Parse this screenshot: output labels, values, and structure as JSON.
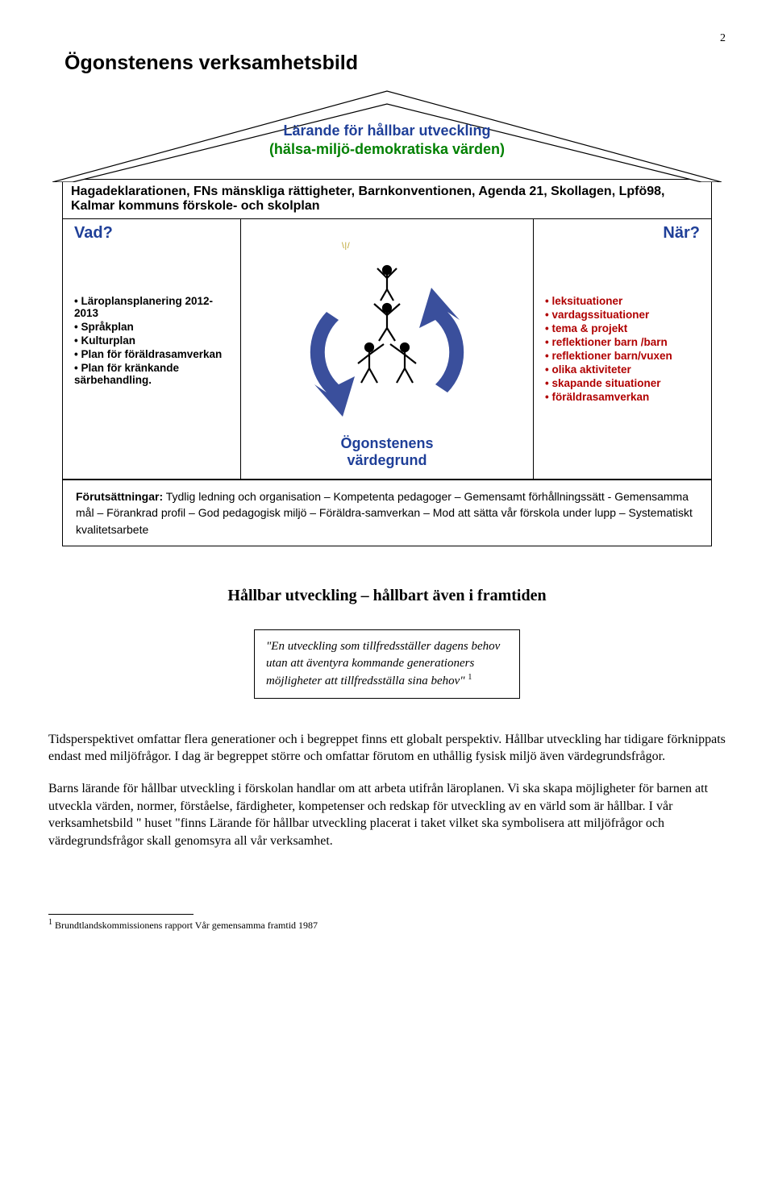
{
  "page_number": "2",
  "main_title": "Ögonstenens verksamhetsbild",
  "roof": {
    "line1": "Lärande för hållbar utveckling",
    "line2": "(hälsa-miljö-demokratiska värden)",
    "line1_color": "#1f3f98",
    "line2_color": "#008000"
  },
  "attic_text": "Hagadeklarationen, FNs mänskliga rättigheter, Barnkonventionen, Agenda 21, Skollagen, Lpfö98, Kalmar kommuns förskole- och skolplan",
  "left_pillar": {
    "header": "Vad?",
    "header_color": "#1f3f98",
    "items": [
      "Läroplansplanering 2012-2013",
      "Språkplan",
      "Kulturplan",
      "Plan för föräldrasamverkan",
      "Plan för kränkande särbehandling."
    ]
  },
  "mid_pillar": {
    "label": "Ögonstenens värdegrund",
    "label_color": "#1f3f98",
    "arrow_color": "#3a4f9c",
    "figure_color": "#000000"
  },
  "right_pillar": {
    "header": "När?",
    "header_color": "#1f3f98",
    "items_color": "#b00000",
    "items": [
      "leksituationer",
      "vardagssituationer",
      "tema & projekt",
      "reflektioner barn /barn",
      "reflektioner barn/vuxen",
      "olika aktiviteter",
      "skapande situationer",
      "föräldrasamverkan"
    ]
  },
  "foundation": {
    "lead": "Förutsättningar:",
    "text": " Tydlig ledning och organisation – Kompetenta pedagoger – Gemensamt förhållningssätt - Gemensamma mål –  Förankrad profil – God pedagogisk miljö – Föräldra-samverkan –  Mod att sätta vår förskola under lupp – Systematiskt kvalitetsarbete"
  },
  "section_heading": "Hållbar utveckling – hållbart även i framtiden",
  "quote": {
    "text_prefix": "\"En utveckling som ",
    "text_italic_rest": "tillfredsställer dagens behov utan att äventyra kommande generationers möjligheter att tillfredsställa sina behov\"",
    "footnote_mark": "1"
  },
  "paragraphs": [
    "Tidsperspektivet omfattar flera generationer och i begreppet finns ett globalt perspektiv. Hållbar utveckling har tidigare förknippats endast med miljöfrågor. I dag är begreppet större och omfattar förutom en uthållig fysisk miljö även värdegrundsfrågor.",
    "Barns lärande för hållbar utveckling i förskolan handlar om att arbeta utifrån läroplanen. Vi ska skapa möjligheter för barnen att utveckla värden, normer, förståelse, färdigheter, kompetenser och redskap för utveckling av en värld som är hållbar. I vår verksamhetsbild \" huset \"finns Lärande för hållbar utveckling placerat i taket vilket ska symbolisera att miljöfrågor och värdegrundsfrågor skall genomsyra all vår verksamhet."
  ],
  "footnote": {
    "mark": "1",
    "text": " Brundtlandskommissionens rapport Vår gemensamma framtid 1987"
  }
}
